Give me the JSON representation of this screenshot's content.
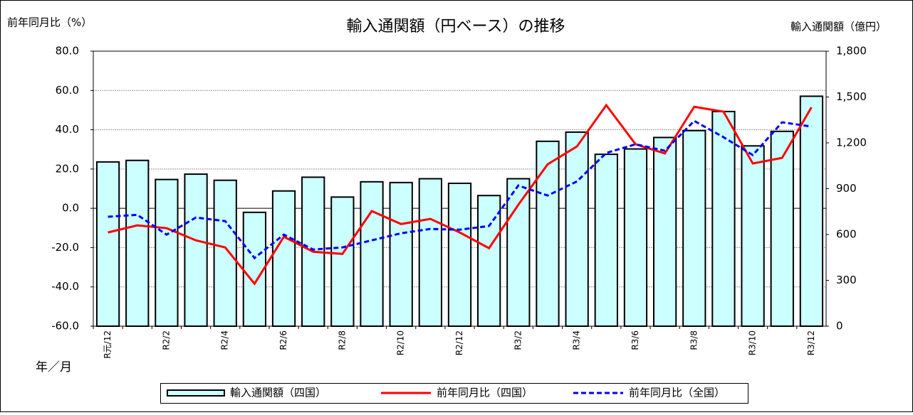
{
  "chart_data": {
    "type": "bar",
    "title": "輸入通関額（円ベース）の推移",
    "y_label": "前年同月比（%）",
    "y2_label": "輸入通関額（億円）",
    "x_label": "年／月",
    "categories": [
      "R元/12",
      null,
      "R2/2",
      null,
      "R2/4",
      null,
      "R2/6",
      null,
      "R2/8",
      null,
      "R2/10",
      null,
      "R2/12",
      null,
      "R3/2",
      null,
      "R3/4",
      null,
      "R3/6",
      null,
      "R3/8",
      null,
      "R3/10",
      null,
      "R3/12"
    ],
    "series": [
      {
        "name": "輸入通関額（四国）",
        "type": "bar",
        "axis": "y2",
        "color": "#ccffff",
        "values": [
          1075,
          1085,
          960,
          995,
          955,
          745,
          885,
          975,
          845,
          945,
          940,
          965,
          935,
          855,
          965,
          1210,
          1270,
          1125,
          1160,
          1235,
          1280,
          1405,
          1180,
          1275,
          1505
        ]
      },
      {
        "name": "前年同月比（四国）",
        "type": "line",
        "color": "#ff0000",
        "values": [
          -12.3,
          -8.7,
          -10.1,
          -16.3,
          -19.9,
          -38.4,
          -14.5,
          -22.1,
          -23.2,
          -1.4,
          -8.0,
          -5.4,
          -12.3,
          -20.3,
          1.8,
          22.4,
          31.5,
          52.5,
          32.6,
          27.9,
          51.7,
          49.2,
          22.8,
          25.7,
          51.4
        ]
      },
      {
        "name": "前年同月比（全国）",
        "type": "line",
        "dashed": true,
        "color": "#0000ff",
        "values": [
          -4.3,
          -3.3,
          -13.4,
          -4.7,
          -6.5,
          -25.3,
          -13.4,
          -21.0,
          -19.9,
          -16.3,
          -12.7,
          -10.5,
          -10.9,
          -9.0,
          11.6,
          6.5,
          13.7,
          28.2,
          32.6,
          29.3,
          44.5,
          36.2,
          27.1,
          43.8,
          41.6
        ]
      }
    ],
    "ylim": [
      -60,
      80
    ],
    "yticks": [
      {
        "value": -60,
        "label": "-60.0"
      },
      {
        "value": -40,
        "label": "-40.0"
      },
      {
        "value": -20,
        "label": "-20.0"
      },
      {
        "value": 0,
        "label": "0.0"
      },
      {
        "value": 20,
        "label": "20.0"
      },
      {
        "value": 40,
        "label": "40.0"
      },
      {
        "value": 60,
        "label": "60.0"
      },
      {
        "value": 80,
        "label": "80.0"
      }
    ],
    "y2lim": [
      0,
      1800
    ],
    "y2ticks": [
      0,
      300,
      600,
      900,
      {
        "value": 1200,
        "label": "1,200"
      },
      {
        "value": 1500,
        "label": "1,500"
      },
      {
        "value": 1800,
        "label": "1,800"
      }
    ],
    "grid": true,
    "legend": "bottom"
  }
}
